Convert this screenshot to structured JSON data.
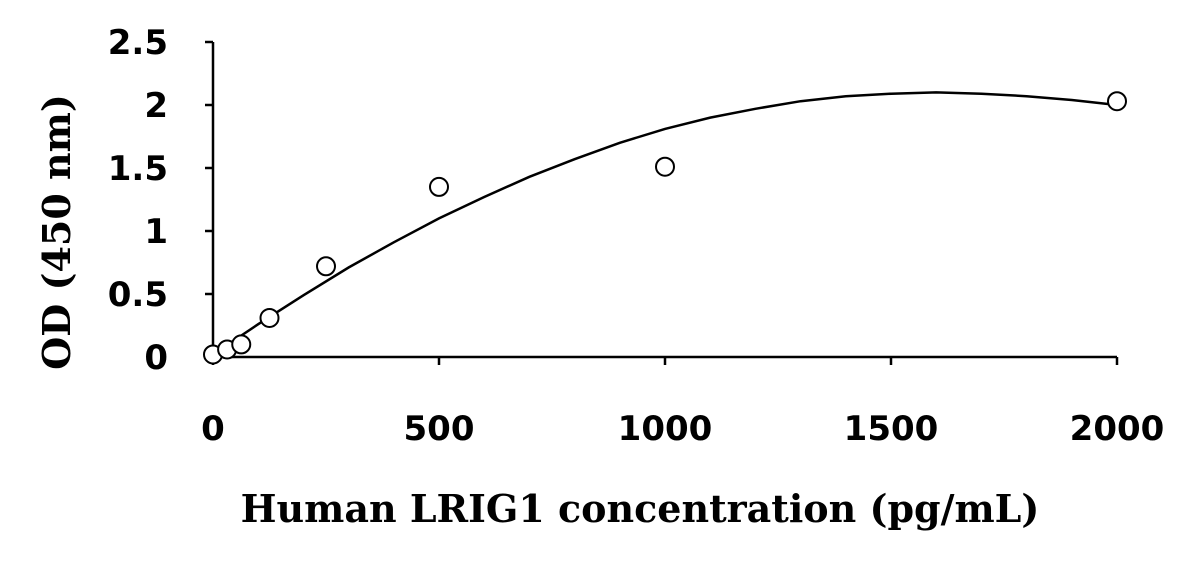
{
  "chart_data": {
    "type": "scatter",
    "title": "",
    "xlabel": "Human LRIG1 concentration (pg/mL)",
    "ylabel": "OD (450 nm)",
    "xlim": [
      0,
      2000
    ],
    "ylim": [
      0,
      2.5
    ],
    "x_ticks": [
      "0",
      "500",
      "1000",
      "1500",
      "2000"
    ],
    "y_ticks": [
      "0",
      "0.5",
      "1",
      "1.5",
      "2",
      "2.5"
    ],
    "grid": false,
    "legend": "none",
    "series": [
      {
        "x": [
          0,
          31.25,
          62.5,
          125,
          250,
          500,
          1000,
          2000
        ],
        "y": [
          0.02,
          0.06,
          0.1,
          0.31,
          0.72,
          1.35,
          1.51,
          2.03
        ]
      }
    ],
    "fit": {
      "type": "polynomial-2",
      "x": [
        0,
        100,
        200,
        300,
        400,
        500,
        600,
        700,
        800,
        900,
        1000,
        1100,
        1200,
        1300,
        1400,
        1500,
        1600,
        1700,
        1800,
        1900,
        2000
      ],
      "y": [
        0.02,
        0.26,
        0.49,
        0.71,
        0.91,
        1.1,
        1.27,
        1.43,
        1.57,
        1.7,
        1.81,
        1.9,
        1.97,
        2.03,
        2.07,
        2.09,
        2.1,
        2.09,
        2.07,
        2.04,
        2.0
      ]
    }
  }
}
